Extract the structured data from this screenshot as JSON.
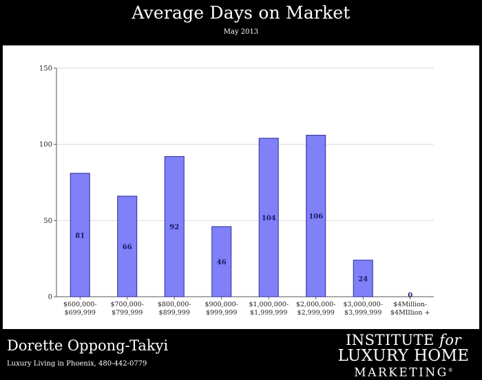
{
  "header": {
    "title": "Average Days on Market",
    "subtitle": "May 2013"
  },
  "footer": {
    "agent_name": "Dorette Oppong-Takyi",
    "tagline": "Luxury Living in Phoenix, 480-442-0779",
    "logo": {
      "line1": "INSTITUTE",
      "line1_italic": "for",
      "line2": "LUXURY HOME",
      "line3": "MARKETING",
      "mark": "®"
    }
  },
  "colors": {
    "background": "#000000",
    "panel": "#ffffff",
    "bar_fill": "#8080f8",
    "bar_stroke": "#2a2a9a",
    "value_label": "#1a1a66",
    "grid": "#dcdcdc"
  },
  "chart_data": {
    "type": "bar",
    "title": "Average Days on Market",
    "subtitle": "May 2013",
    "xlabel": "",
    "ylabel": "",
    "ylim": [
      0,
      150
    ],
    "yticks": [
      0,
      50,
      100,
      150
    ],
    "grid": true,
    "legend": "none",
    "categories": [
      [
        "$600,000-",
        "$699,999"
      ],
      [
        "$700,000-",
        "$799,999"
      ],
      [
        "$800,000-",
        "$899,999"
      ],
      [
        "$900,000-",
        "$999,999"
      ],
      [
        "$1,000,000-",
        "$1,999,999"
      ],
      [
        "$2,000,000-",
        "$2,999,999"
      ],
      [
        "$3,000,000-",
        "$3,999,999"
      ],
      [
        "$4Million-",
        "$4MIllion +"
      ]
    ],
    "values": [
      81,
      66,
      92,
      46,
      104,
      106,
      24,
      0
    ],
    "data_labels": [
      "81",
      "66",
      "92",
      "46",
      "104",
      "106",
      "24",
      "0"
    ]
  }
}
